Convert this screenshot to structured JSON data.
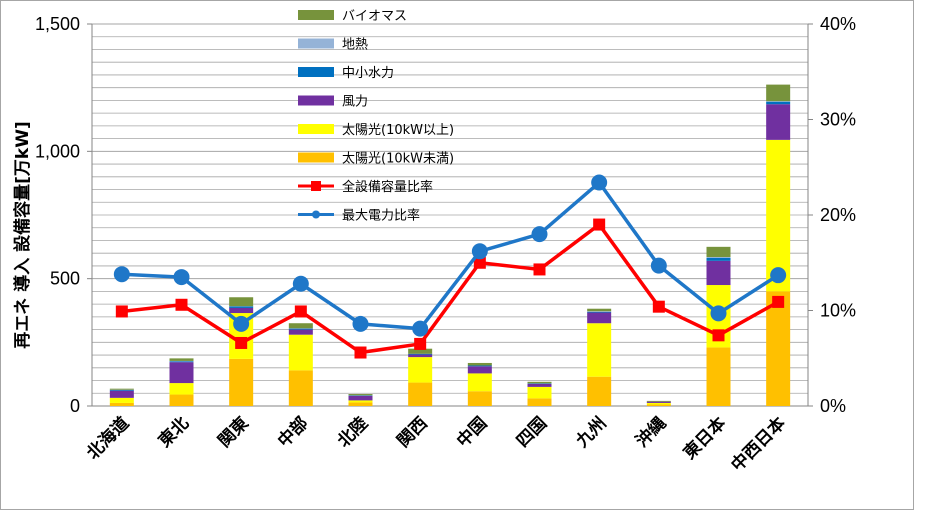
{
  "chart_data": {
    "type": "bar",
    "stacked": true,
    "categories": [
      "北海道",
      "東北",
      "関東",
      "中部",
      "北陸",
      "関西",
      "中国",
      "四国",
      "九州",
      "沖縄",
      "東日本",
      "中西日本"
    ],
    "ylabel": "再エネ 導入 設備容量[万kW]",
    "ylim": [
      0,
      1500
    ],
    "yticks": [
      0,
      500,
      1000,
      1500
    ],
    "yticklabels": [
      "0",
      "500",
      "1,000",
      "1,500"
    ],
    "y2lim": [
      0,
      40
    ],
    "y2ticks": [
      0,
      10,
      20,
      30,
      40
    ],
    "y2ticklabels": [
      "0%",
      "10%",
      "20%",
      "30%",
      "40%"
    ],
    "grid": true,
    "legend_position": "top-center",
    "legend_order": [
      "バイオマス",
      "地熱",
      "中小水力",
      "風力",
      "太陽光(10kW以上)",
      "太陽光(10kW未満)",
      "全設備容量比率",
      "最大電力比率"
    ],
    "bar_series": [
      {
        "name": "太陽光(10kW未満)",
        "color": "#ffc000",
        "values": [
          12,
          45,
          185,
          140,
          14,
          92,
          58,
          30,
          115,
          6,
          230,
          450
        ]
      },
      {
        "name": "太陽光(10kW以上)",
        "color": "#ffff00",
        "values": [
          20,
          45,
          180,
          140,
          8,
          100,
          70,
          45,
          210,
          6,
          245,
          595
        ]
      },
      {
        "name": "風力",
        "color": "#7030a0",
        "values": [
          28,
          82,
          20,
          20,
          18,
          10,
          28,
          12,
          42,
          5,
          95,
          140
        ]
      },
      {
        "name": "中小水力",
        "color": "#0070c0",
        "values": [
          3,
          3,
          6,
          4,
          2,
          3,
          3,
          2,
          3,
          0,
          12,
          10
        ]
      },
      {
        "name": "地熱",
        "color": "#95b3d7",
        "values": [
          1,
          2,
          1,
          1,
          0,
          0,
          0,
          0,
          2,
          0,
          3,
          2
        ]
      },
      {
        "name": "バイオマス",
        "color": "#77933c",
        "values": [
          4,
          10,
          35,
          20,
          5,
          20,
          10,
          6,
          10,
          3,
          40,
          65
        ]
      }
    ],
    "line_series": [
      {
        "name": "全設備容量比率",
        "color": "#ff0000",
        "marker": "square",
        "values": [
          9.9,
          10.6,
          6.6,
          9.9,
          5.6,
          6.5,
          15.0,
          14.3,
          19.0,
          10.4,
          7.4,
          10.9
        ]
      },
      {
        "name": "最大電力比率",
        "color": "#1f77c8",
        "marker": "circle",
        "values": [
          13.8,
          13.5,
          8.6,
          12.8,
          8.6,
          8.1,
          16.2,
          18.0,
          23.4,
          14.7,
          9.7,
          13.7
        ]
      }
    ]
  }
}
